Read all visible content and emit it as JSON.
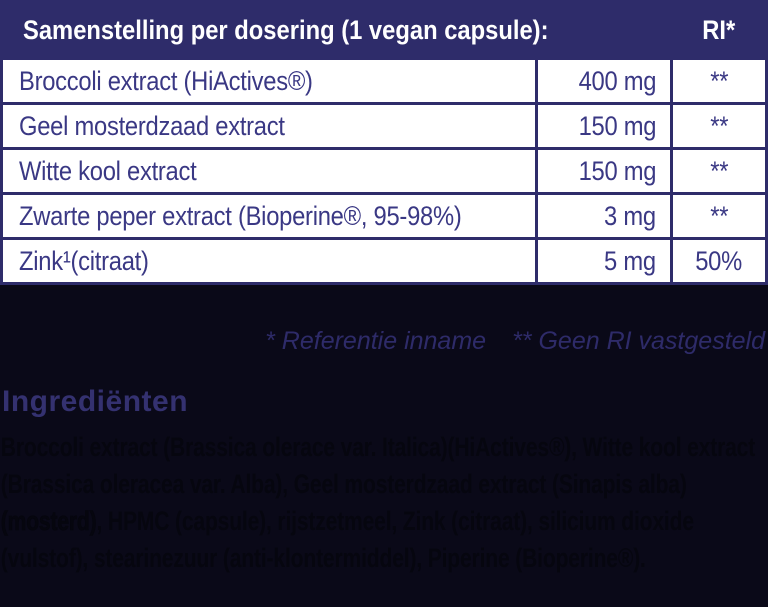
{
  "table": {
    "header": {
      "title": "Samenstelling per dosering (1 vegan capsule):",
      "ri_label": "RI*"
    },
    "rows": [
      {
        "name": "Broccoli extract (HiActives®)",
        "amount": "400 mg",
        "ri": "**"
      },
      {
        "name": "Geel mosterdzaad extract",
        "amount": "150 mg",
        "ri": "**"
      },
      {
        "name": "Witte kool extract",
        "amount": "150 mg",
        "ri": "**"
      },
      {
        "name": "Zwarte peper extract (Bioperine®, 95-98%)",
        "amount": "3 mg",
        "ri": "**"
      },
      {
        "name": "Zink¹(citraat)",
        "amount": "5 mg",
        "ri": "50%"
      }
    ]
  },
  "footnotes": {
    "reference_intake": "* Referentie inname",
    "no_ri_established": "** Geen RI vastgesteld"
  },
  "ingredients": {
    "heading": "Ingrediënten",
    "segments": [
      {
        "text": "Broccoli extract (Brassica olerace var. Italica)(HiActives®), Witte kool extract (Brassica oleracea var. Alba), Geel mosterdzaad extract (Sinapis alba) ",
        "bold": false
      },
      {
        "text": "(mosterd)",
        "bold": true
      },
      {
        "text": ", HPMC (capsule), rijstzetmeel, Zink (citraat), silicium dioxide (vulstof), stearinezuur (anti-klontermiddel), Piperine (Bioperine®).",
        "bold": false
      }
    ]
  },
  "colors": {
    "table_navy": "#2e2c6a",
    "row_text": "#3a3884",
    "page_background": "#0a0918",
    "header_text": "#ffffff",
    "footnote_text": "#2e2b69",
    "heading_text": "#343170",
    "paragraph_text": "#06060f"
  }
}
